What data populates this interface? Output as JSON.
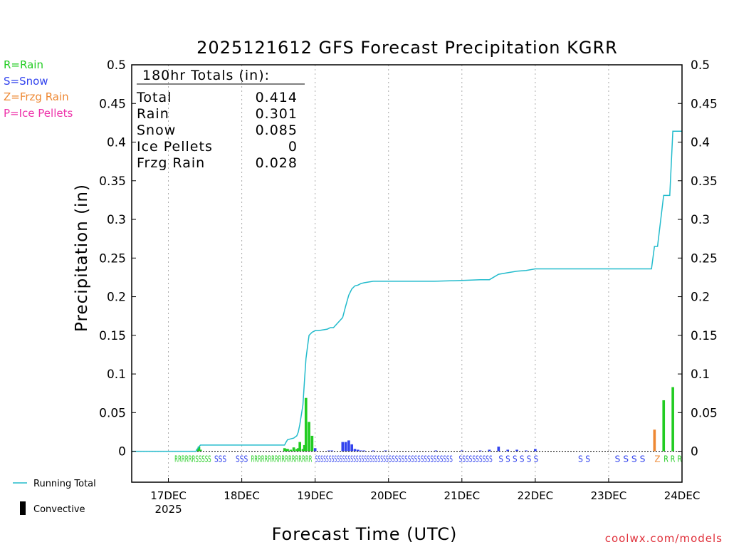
{
  "colors": {
    "rain": "#22cc22",
    "snow": "#3344ee",
    "frzg_rain": "#ee8833",
    "ice_pellets": "#ee33aa",
    "running_total": "#22bbcc",
    "convective": "#000000",
    "grid": "#aaaaaa",
    "credit": "#e0303a"
  },
  "chart_data": {
    "type": "bar",
    "title": "2025121612 GFS Forecast Precipitation KGRR",
    "xlabel": "Forecast Time (UTC)",
    "ylabel": "Precipitation (in)",
    "ylim": [
      -0.04,
      0.5
    ],
    "xlim_hours": [
      0,
      180
    ],
    "y_ticks": [
      0,
      0.05,
      0.1,
      0.15,
      0.2,
      0.25,
      0.3,
      0.35,
      0.4,
      0.45,
      0.5
    ],
    "y_tick_labels": [
      "0",
      "0.05",
      "0.1",
      "0.15",
      "0.2",
      "0.25",
      "0.3",
      "0.35",
      "0.4",
      "0.45",
      "0.5"
    ],
    "x_ticks": [
      {
        "hour": 12,
        "label": "17DEC",
        "sublabel": "2025"
      },
      {
        "hour": 36,
        "label": "18DEC"
      },
      {
        "hour": 60,
        "label": "19DEC"
      },
      {
        "hour": 84,
        "label": "20DEC"
      },
      {
        "hour": 108,
        "label": "21DEC"
      },
      {
        "hour": 132,
        "label": "22DEC"
      },
      {
        "hour": 156,
        "label": "23DEC"
      },
      {
        "hour": 180,
        "label": "24DEC"
      }
    ],
    "gridlines": "vertical-dotted",
    "type_legend": [
      {
        "text": "R=Rain",
        "key": "rain"
      },
      {
        "text": "S=Snow",
        "key": "snow"
      },
      {
        "text": "Z=Frzg Rain",
        "key": "frzg_rain"
      },
      {
        "text": "P=Ice Pellets",
        "key": "ice_pellets"
      }
    ],
    "legend": {
      "running_total": "Running Total",
      "convective": "Convective"
    },
    "totals_box": {
      "header": "180hr Totals (in):",
      "rows": [
        {
          "label": "Total",
          "value": "0.414"
        },
        {
          "label": "Rain",
          "value": "0.301"
        },
        {
          "label": "Snow",
          "value": "0.085"
        },
        {
          "label": "Ice Pellets",
          "value": "0"
        },
        {
          "label": "Frzg Rain",
          "value": "0.028"
        }
      ]
    },
    "bars": [
      {
        "hour": 21.5,
        "value": 0.003,
        "ptype": "rain"
      },
      {
        "hour": 22,
        "value": 0.006,
        "ptype": "rain"
      },
      {
        "hour": 22.5,
        "value": 0.002,
        "ptype": "rain"
      },
      {
        "hour": 50,
        "value": 0.004,
        "ptype": "rain"
      },
      {
        "hour": 50.5,
        "value": 0.003,
        "ptype": "rain"
      },
      {
        "hour": 51,
        "value": 0.003,
        "ptype": "rain"
      },
      {
        "hour": 52,
        "value": 0.002,
        "ptype": "rain"
      },
      {
        "hour": 53,
        "value": 0.005,
        "ptype": "rain"
      },
      {
        "hour": 54,
        "value": 0.003,
        "ptype": "rain"
      },
      {
        "hour": 54.5,
        "value": 0.004,
        "ptype": "rain"
      },
      {
        "hour": 55,
        "value": 0.012,
        "ptype": "rain"
      },
      {
        "hour": 56,
        "value": 0.003,
        "ptype": "rain"
      },
      {
        "hour": 56.5,
        "value": 0.008,
        "ptype": "rain"
      },
      {
        "hour": 57,
        "value": 0.069,
        "ptype": "rain"
      },
      {
        "hour": 58,
        "value": 0.038,
        "ptype": "rain"
      },
      {
        "hour": 59,
        "value": 0.02,
        "ptype": "rain"
      },
      {
        "hour": 60,
        "value": 0.004,
        "ptype": "snow"
      },
      {
        "hour": 64.5,
        "value": 0.001,
        "ptype": "snow"
      },
      {
        "hour": 65.5,
        "value": 0.001,
        "ptype": "snow"
      },
      {
        "hour": 69,
        "value": 0.012,
        "ptype": "snow"
      },
      {
        "hour": 70,
        "value": 0.012,
        "ptype": "snow"
      },
      {
        "hour": 71,
        "value": 0.014,
        "ptype": "snow"
      },
      {
        "hour": 72,
        "value": 0.009,
        "ptype": "snow"
      },
      {
        "hour": 73,
        "value": 0.003,
        "ptype": "snow"
      },
      {
        "hour": 74,
        "value": 0.002,
        "ptype": "snow"
      },
      {
        "hour": 75,
        "value": 0.001,
        "ptype": "snow"
      },
      {
        "hour": 76,
        "value": 0.001,
        "ptype": "snow"
      },
      {
        "hour": 79,
        "value": 0.001,
        "ptype": "snow"
      },
      {
        "hour": 83,
        "value": 0.001,
        "ptype": "snow"
      },
      {
        "hour": 99.5,
        "value": 0.001,
        "ptype": "snow"
      },
      {
        "hour": 108,
        "value": 0.001,
        "ptype": "snow"
      },
      {
        "hour": 114,
        "value": 0.001,
        "ptype": "snow"
      },
      {
        "hour": 117,
        "value": 0.002,
        "ptype": "snow"
      },
      {
        "hour": 120,
        "value": 0.006,
        "ptype": "snow"
      },
      {
        "hour": 123,
        "value": 0.002,
        "ptype": "snow"
      },
      {
        "hour": 126,
        "value": 0.002,
        "ptype": "snow"
      },
      {
        "hour": 129,
        "value": 0.001,
        "ptype": "snow"
      },
      {
        "hour": 132,
        "value": 0.003,
        "ptype": "snow"
      },
      {
        "hour": 171,
        "value": 0.028,
        "ptype": "frzg_rain"
      },
      {
        "hour": 174,
        "value": 0.066,
        "ptype": "rain"
      },
      {
        "hour": 177,
        "value": 0.083,
        "ptype": "rain"
      }
    ],
    "running_total": {
      "hours": [
        0,
        21,
        21.5,
        22,
        22.5,
        50,
        50.5,
        51,
        52,
        53,
        54,
        54.5,
        55,
        56,
        56.5,
        57,
        57.5,
        58,
        59,
        60,
        61,
        64,
        65,
        66,
        69,
        70,
        71,
        72,
        73,
        74,
        75,
        76,
        79,
        83,
        90,
        99,
        108,
        114,
        117,
        120,
        123,
        126,
        129,
        132,
        168,
        170,
        171,
        172,
        174,
        176,
        177,
        178,
        180
      ],
      "values": [
        0,
        0,
        0.003,
        0.006,
        0.008,
        0.008,
        0.012,
        0.015,
        0.016,
        0.017,
        0.02,
        0.025,
        0.035,
        0.06,
        0.09,
        0.12,
        0.135,
        0.15,
        0.154,
        0.156,
        0.156,
        0.158,
        0.16,
        0.16,
        0.173,
        0.188,
        0.202,
        0.21,
        0.214,
        0.215,
        0.217,
        0.218,
        0.22,
        0.22,
        0.22,
        0.22,
        0.221,
        0.222,
        0.222,
        0.229,
        0.231,
        0.233,
        0.234,
        0.236,
        0.236,
        0.236,
        0.265,
        0.265,
        0.331,
        0.331,
        0.414,
        0.414,
        0.414
      ]
    },
    "type_markers": [
      {
        "text": "RRRRRRSSSSS",
        "hour_start": 14,
        "hour_end": 26,
        "ptype": "mixed_rs"
      },
      {
        "text": "SSS",
        "hour_start": 27,
        "hour_end": 31,
        "ptype": "snow"
      },
      {
        "text": "SSS",
        "hour_start": 34,
        "hour_end": 38,
        "ptype": "mixed_sr"
      },
      {
        "text": "RRRRRRRRRRRRRRRRRR",
        "hour_start": 39,
        "hour_end": 59,
        "ptype": "rain"
      },
      {
        "text": "SSSSSSSSSSSSSSSSSSSSSSSSSSS",
        "hour_start": 60,
        "hour_end": 84,
        "ptype": "snow"
      },
      {
        "text": "SSSSSSSSSSSSSSSSSSSS",
        "hour_start": 84,
        "hour_end": 105,
        "ptype": "snow"
      },
      {
        "text": "SSSSSSSSSS",
        "hour_start": 107,
        "hour_end": 118,
        "ptype": "snow"
      },
      {
        "text": "S S S S S S",
        "hour_start": 120,
        "hour_end": 133,
        "ptype": "snow"
      },
      {
        "text": "S S",
        "hour_start": 146,
        "hour_end": 150,
        "ptype": "snow"
      },
      {
        "text": "S S S S",
        "hour_start": 158,
        "hour_end": 168,
        "ptype": "snow"
      },
      {
        "text": "Z",
        "hour_start": 171,
        "hour_end": 171,
        "ptype": "frzg_rain"
      },
      {
        "text": "R R R",
        "hour_start": 174,
        "hour_end": 180,
        "ptype": "rain"
      }
    ]
  },
  "credit": "coolwx.com/models"
}
